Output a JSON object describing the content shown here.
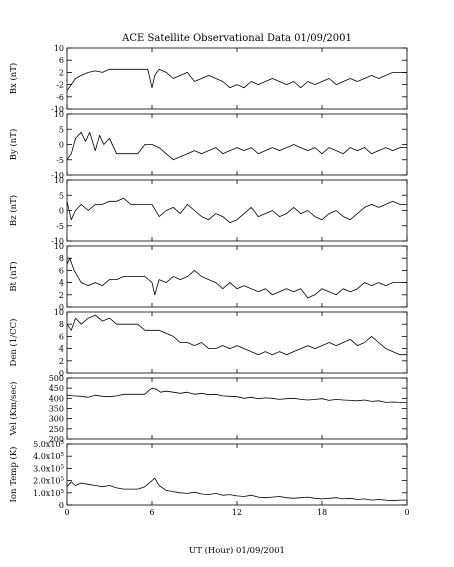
{
  "chart_data": {
    "type": "line",
    "title": "ACE Satellite Observational Data   01/09/2001",
    "xlabel": "UT (Hour)   01/09/2001",
    "x_ticks": [
      "0",
      "6",
      "12",
      "18",
      "0"
    ],
    "x_tick_values": [
      0,
      6,
      12,
      18,
      24
    ],
    "xlim": [
      0,
      24
    ],
    "panels": [
      {
        "ylabel": "Bx (nT)",
        "ylim": [
          -10,
          10
        ],
        "y_ticks": [
          {
            "value": -10,
            "label": "-10"
          },
          {
            "value": -6,
            "label": "-6"
          },
          {
            "value": -2,
            "label": "-2"
          },
          {
            "value": 2,
            "label": "2"
          },
          {
            "value": 6,
            "label": "6"
          },
          {
            "value": 10,
            "label": "10"
          }
        ],
        "series": [
          {
            "x": [
              0,
              0.3,
              0.6,
              1,
              1.5,
              2,
              2.5,
              3,
              3.5,
              4,
              4.5,
              5,
              5.5,
              5.7,
              6,
              6.2,
              6.5,
              7,
              7.5,
              8,
              8.5,
              9,
              9.5,
              10,
              10.5,
              11,
              11.5,
              12,
              12.5,
              13,
              13.5,
              14,
              14.5,
              15,
              15.5,
              16,
              16.5,
              17,
              17.5,
              18,
              18.5,
              19,
              19.5,
              20,
              20.5,
              21,
              21.5,
              22,
              22.5,
              23,
              23.5,
              24
            ],
            "y": [
              -4,
              -2,
              0,
              1,
              2,
              2.5,
              2,
              3,
              3,
              3,
              3,
              3,
              3,
              3,
              -3,
              1,
              3,
              2,
              0,
              1,
              2,
              -1,
              0,
              1,
              0,
              -1,
              -3,
              -2,
              -3,
              -1,
              -2,
              -1,
              0,
              -1,
              -2,
              -1,
              -3,
              -1,
              -2,
              -1,
              0,
              -2,
              -1,
              0,
              -1,
              0,
              1,
              0,
              1,
              2,
              2,
              2
            ]
          }
        ]
      },
      {
        "ylabel": "By (nT)",
        "ylim": [
          -10,
          10
        ],
        "y_ticks": [
          {
            "value": -10,
            "label": "-10"
          },
          {
            "value": -5,
            "label": "-5"
          },
          {
            "value": 0,
            "label": "0"
          },
          {
            "value": 5,
            "label": "5"
          },
          {
            "value": 10,
            "label": "10"
          }
        ],
        "series": [
          {
            "x": [
              0,
              0.3,
              0.6,
              1,
              1.3,
              1.6,
              2,
              2.3,
              2.6,
              3,
              3.5,
              4,
              4.5,
              5,
              5.5,
              6,
              6.5,
              7,
              7.5,
              8,
              8.5,
              9,
              9.5,
              10,
              10.5,
              11,
              11.5,
              12,
              12.5,
              13,
              13.5,
              14,
              14.5,
              15,
              15.5,
              16,
              16.5,
              17,
              17.5,
              18,
              18.5,
              19,
              19.5,
              20,
              20.5,
              21,
              21.5,
              22,
              22.5,
              23,
              23.5,
              24
            ],
            "y": [
              -5,
              -3,
              2,
              4,
              1,
              4,
              -2,
              3,
              0,
              2,
              -3,
              -3,
              -3,
              -3,
              0,
              0,
              -1,
              -3,
              -5,
              -4,
              -3,
              -2,
              -3,
              -2,
              -1,
              -3,
              -2,
              -1,
              -2,
              -1,
              -3,
              -2,
              -1,
              -2,
              -1,
              0,
              -1,
              -2,
              -1,
              -3,
              -1,
              -2,
              -3,
              -1,
              -2,
              -1,
              -3,
              -2,
              -1,
              -2,
              -1,
              -1
            ]
          }
        ]
      },
      {
        "ylabel": "Bz (nT)",
        "ylim": [
          -10,
          10
        ],
        "y_ticks": [
          {
            "value": -10,
            "label": "-10"
          },
          {
            "value": -5,
            "label": "-5"
          },
          {
            "value": 0,
            "label": "0"
          },
          {
            "value": 5,
            "label": "5"
          },
          {
            "value": 10,
            "label": "10"
          }
        ],
        "series": [
          {
            "x": [
              0,
              0.3,
              0.6,
              1,
              1.5,
              2,
              2.5,
              3,
              3.5,
              4,
              4.5,
              5,
              5.5,
              6,
              6.5,
              7,
              7.5,
              8,
              8.5,
              9,
              9.5,
              10,
              10.5,
              11,
              11.5,
              12,
              12.5,
              13,
              13.5,
              14,
              14.5,
              15,
              15.5,
              16,
              16.5,
              17,
              17.5,
              18,
              18.5,
              19,
              19.5,
              20,
              20.5,
              21,
              21.5,
              22,
              22.5,
              23,
              23.5,
              24
            ],
            "y": [
              3,
              -3,
              0,
              2,
              0,
              2,
              2,
              3,
              3,
              4,
              2,
              2,
              2,
              2,
              -2,
              0,
              1,
              -1,
              2,
              0,
              -2,
              -3,
              -1,
              -2,
              -4,
              -3,
              -1,
              1,
              -2,
              -1,
              0,
              -2,
              -1,
              1,
              -1,
              0,
              -2,
              -3,
              -1,
              0,
              -2,
              -3,
              -1,
              1,
              2,
              1,
              2,
              3,
              2,
              2
            ]
          }
        ]
      },
      {
        "ylabel": "Bt (nT)",
        "ylim": [
          0,
          10
        ],
        "y_ticks": [
          {
            "value": 0,
            "label": "0"
          },
          {
            "value": 2,
            "label": "2"
          },
          {
            "value": 4,
            "label": "4"
          },
          {
            "value": 6,
            "label": "6"
          },
          {
            "value": 8,
            "label": "8"
          },
          {
            "value": 10,
            "label": "10"
          }
        ],
        "series": [
          {
            "x": [
              0,
              0.2,
              0.5,
              1,
              1.5,
              2,
              2.5,
              3,
              3.5,
              4,
              4.5,
              5,
              5.5,
              6,
              6.2,
              6.5,
              7,
              7.5,
              8,
              8.5,
              9,
              9.5,
              10,
              10.5,
              11,
              11.5,
              12,
              12.5,
              13,
              13.5,
              14,
              14.5,
              15,
              15.5,
              16,
              16.5,
              17,
              17.5,
              18,
              18.5,
              19,
              19.5,
              20,
              20.5,
              21,
              21.5,
              22,
              22.5,
              23,
              23.5,
              24
            ],
            "y": [
              7,
              8,
              6,
              4,
              3.5,
              4,
              3.5,
              4.5,
              4.5,
              5,
              5,
              5,
              5,
              4,
              2,
              4.5,
              4,
              5,
              4.5,
              5,
              6,
              5,
              4.5,
              4,
              3,
              4,
              3,
              3.5,
              3,
              2.5,
              3,
              2,
              2.5,
              3,
              2.5,
              3,
              1.5,
              2,
              3,
              2.5,
              2,
              3,
              2.5,
              3,
              4,
              3.5,
              4,
              3.5,
              4,
              4,
              4
            ]
          }
        ]
      },
      {
        "ylabel": "Den (1/CC)",
        "ylim": [
          0,
          10
        ],
        "y_ticks": [
          {
            "value": 0,
            "label": "0"
          },
          {
            "value": 2,
            "label": "2"
          },
          {
            "value": 4,
            "label": "4"
          },
          {
            "value": 6,
            "label": "6"
          },
          {
            "value": 8,
            "label": "8"
          },
          {
            "value": 10,
            "label": "10"
          }
        ],
        "series": [
          {
            "x": [
              0,
              0.3,
              0.6,
              1,
              1.5,
              2,
              2.5,
              3,
              3.5,
              4,
              4.5,
              5,
              5.5,
              6,
              6.5,
              7,
              7.5,
              8,
              8.5,
              9,
              9.5,
              10,
              10.5,
              11,
              11.5,
              12,
              12.5,
              13,
              13.5,
              14,
              14.5,
              15,
              15.5,
              16,
              16.5,
              17,
              17.5,
              18,
              18.5,
              19,
              19.5,
              20,
              20.5,
              21,
              21.5,
              22,
              22.5,
              23,
              23.5,
              24
            ],
            "y": [
              8,
              7,
              9,
              8,
              9,
              9.5,
              8.5,
              9,
              8,
              8,
              8,
              8,
              7,
              7,
              7,
              6.5,
              6,
              5,
              5,
              4.5,
              5,
              4,
              4,
              4.5,
              4,
              4.5,
              4,
              3.5,
              3,
              3.5,
              3,
              3.5,
              3,
              3.5,
              4,
              4.5,
              4,
              4.5,
              5,
              4.5,
              5,
              5.5,
              4.5,
              5,
              6,
              5,
              4,
              3.5,
              3,
              3
            ]
          }
        ]
      },
      {
        "ylabel": "Vel (Km/sec)",
        "ylim": [
          200,
          500
        ],
        "y_ticks": [
          {
            "value": 200,
            "label": "200"
          },
          {
            "value": 250,
            "label": "250"
          },
          {
            "value": 300,
            "label": "300"
          },
          {
            "value": 350,
            "label": "350"
          },
          {
            "value": 400,
            "label": "400"
          },
          {
            "value": 450,
            "label": "450"
          },
          {
            "value": 500,
            "label": "500"
          }
        ],
        "series": [
          {
            "x": [
              0,
              0.5,
              1,
              1.5,
              2,
              2.5,
              3,
              3.5,
              4,
              4.5,
              5,
              5.5,
              5.8,
              6,
              6.3,
              6.6,
              7,
              7.5,
              8,
              8.5,
              9,
              9.5,
              10,
              10.5,
              11,
              11.5,
              12,
              12.5,
              13,
              13.5,
              14,
              14.5,
              15,
              15.5,
              16,
              16.5,
              17,
              17.5,
              18,
              18.5,
              19,
              19.5,
              20,
              20.5,
              21,
              21.5,
              22,
              22.5,
              23,
              23.5,
              24
            ],
            "y": [
              415,
              412,
              410,
              405,
              415,
              410,
              408,
              412,
              420,
              420,
              420,
              420,
              440,
              450,
              445,
              430,
              435,
              430,
              425,
              430,
              420,
              425,
              418,
              420,
              412,
              410,
              408,
              400,
              405,
              398,
              402,
              400,
              395,
              398,
              400,
              395,
              392,
              395,
              398,
              390,
              395,
              392,
              390,
              388,
              392,
              385,
              388,
              380,
              382,
              380,
              380
            ]
          }
        ]
      },
      {
        "ylabel": "Ion Temp (K)",
        "ylim": [
          0,
          500000
        ],
        "y_ticks": [
          {
            "value": 0,
            "label": "0",
            "base": "",
            "exp": ""
          },
          {
            "value": 100000,
            "label": "1.0×10⁵",
            "base": "1.0x10",
            "exp": "5"
          },
          {
            "value": 200000,
            "label": "2.0×10⁵",
            "base": "2.0x10",
            "exp": "5"
          },
          {
            "value": 300000,
            "label": "3.0×10⁵",
            "base": "3.0x10",
            "exp": "5"
          },
          {
            "value": 400000,
            "label": "4.0×10⁵",
            "base": "4.0x10",
            "exp": "5"
          },
          {
            "value": 500000,
            "label": "5.0×10⁵",
            "base": "5.0x10",
            "exp": "5"
          }
        ],
        "series": [
          {
            "x": [
              0,
              0.3,
              0.6,
              1,
              1.5,
              2,
              2.5,
              3,
              3.5,
              4,
              4.5,
              5,
              5.5,
              6,
              6.2,
              6.5,
              7,
              7.5,
              8,
              8.5,
              9,
              9.5,
              10,
              10.5,
              11,
              11.5,
              12,
              12.5,
              13,
              13.5,
              14,
              14.5,
              15,
              15.5,
              16,
              16.5,
              17,
              17.5,
              18,
              18.5,
              19,
              19.5,
              20,
              20.5,
              21,
              21.5,
              22,
              22.5,
              23,
              23.5,
              24
            ],
            "y": [
              150000,
              190000,
              160000,
              180000,
              170000,
              160000,
              150000,
              160000,
              140000,
              130000,
              130000,
              130000,
              150000,
              200000,
              220000,
              160000,
              120000,
              110000,
              100000,
              95000,
              105000,
              90000,
              85000,
              95000,
              80000,
              85000,
              75000,
              70000,
              80000,
              65000,
              60000,
              65000,
              70000,
              60000,
              55000,
              60000,
              65000,
              55000,
              50000,
              55000,
              60000,
              50000,
              55000,
              45000,
              50000,
              40000,
              45000,
              40000,
              35000,
              40000,
              40000
            ]
          }
        ]
      }
    ]
  }
}
